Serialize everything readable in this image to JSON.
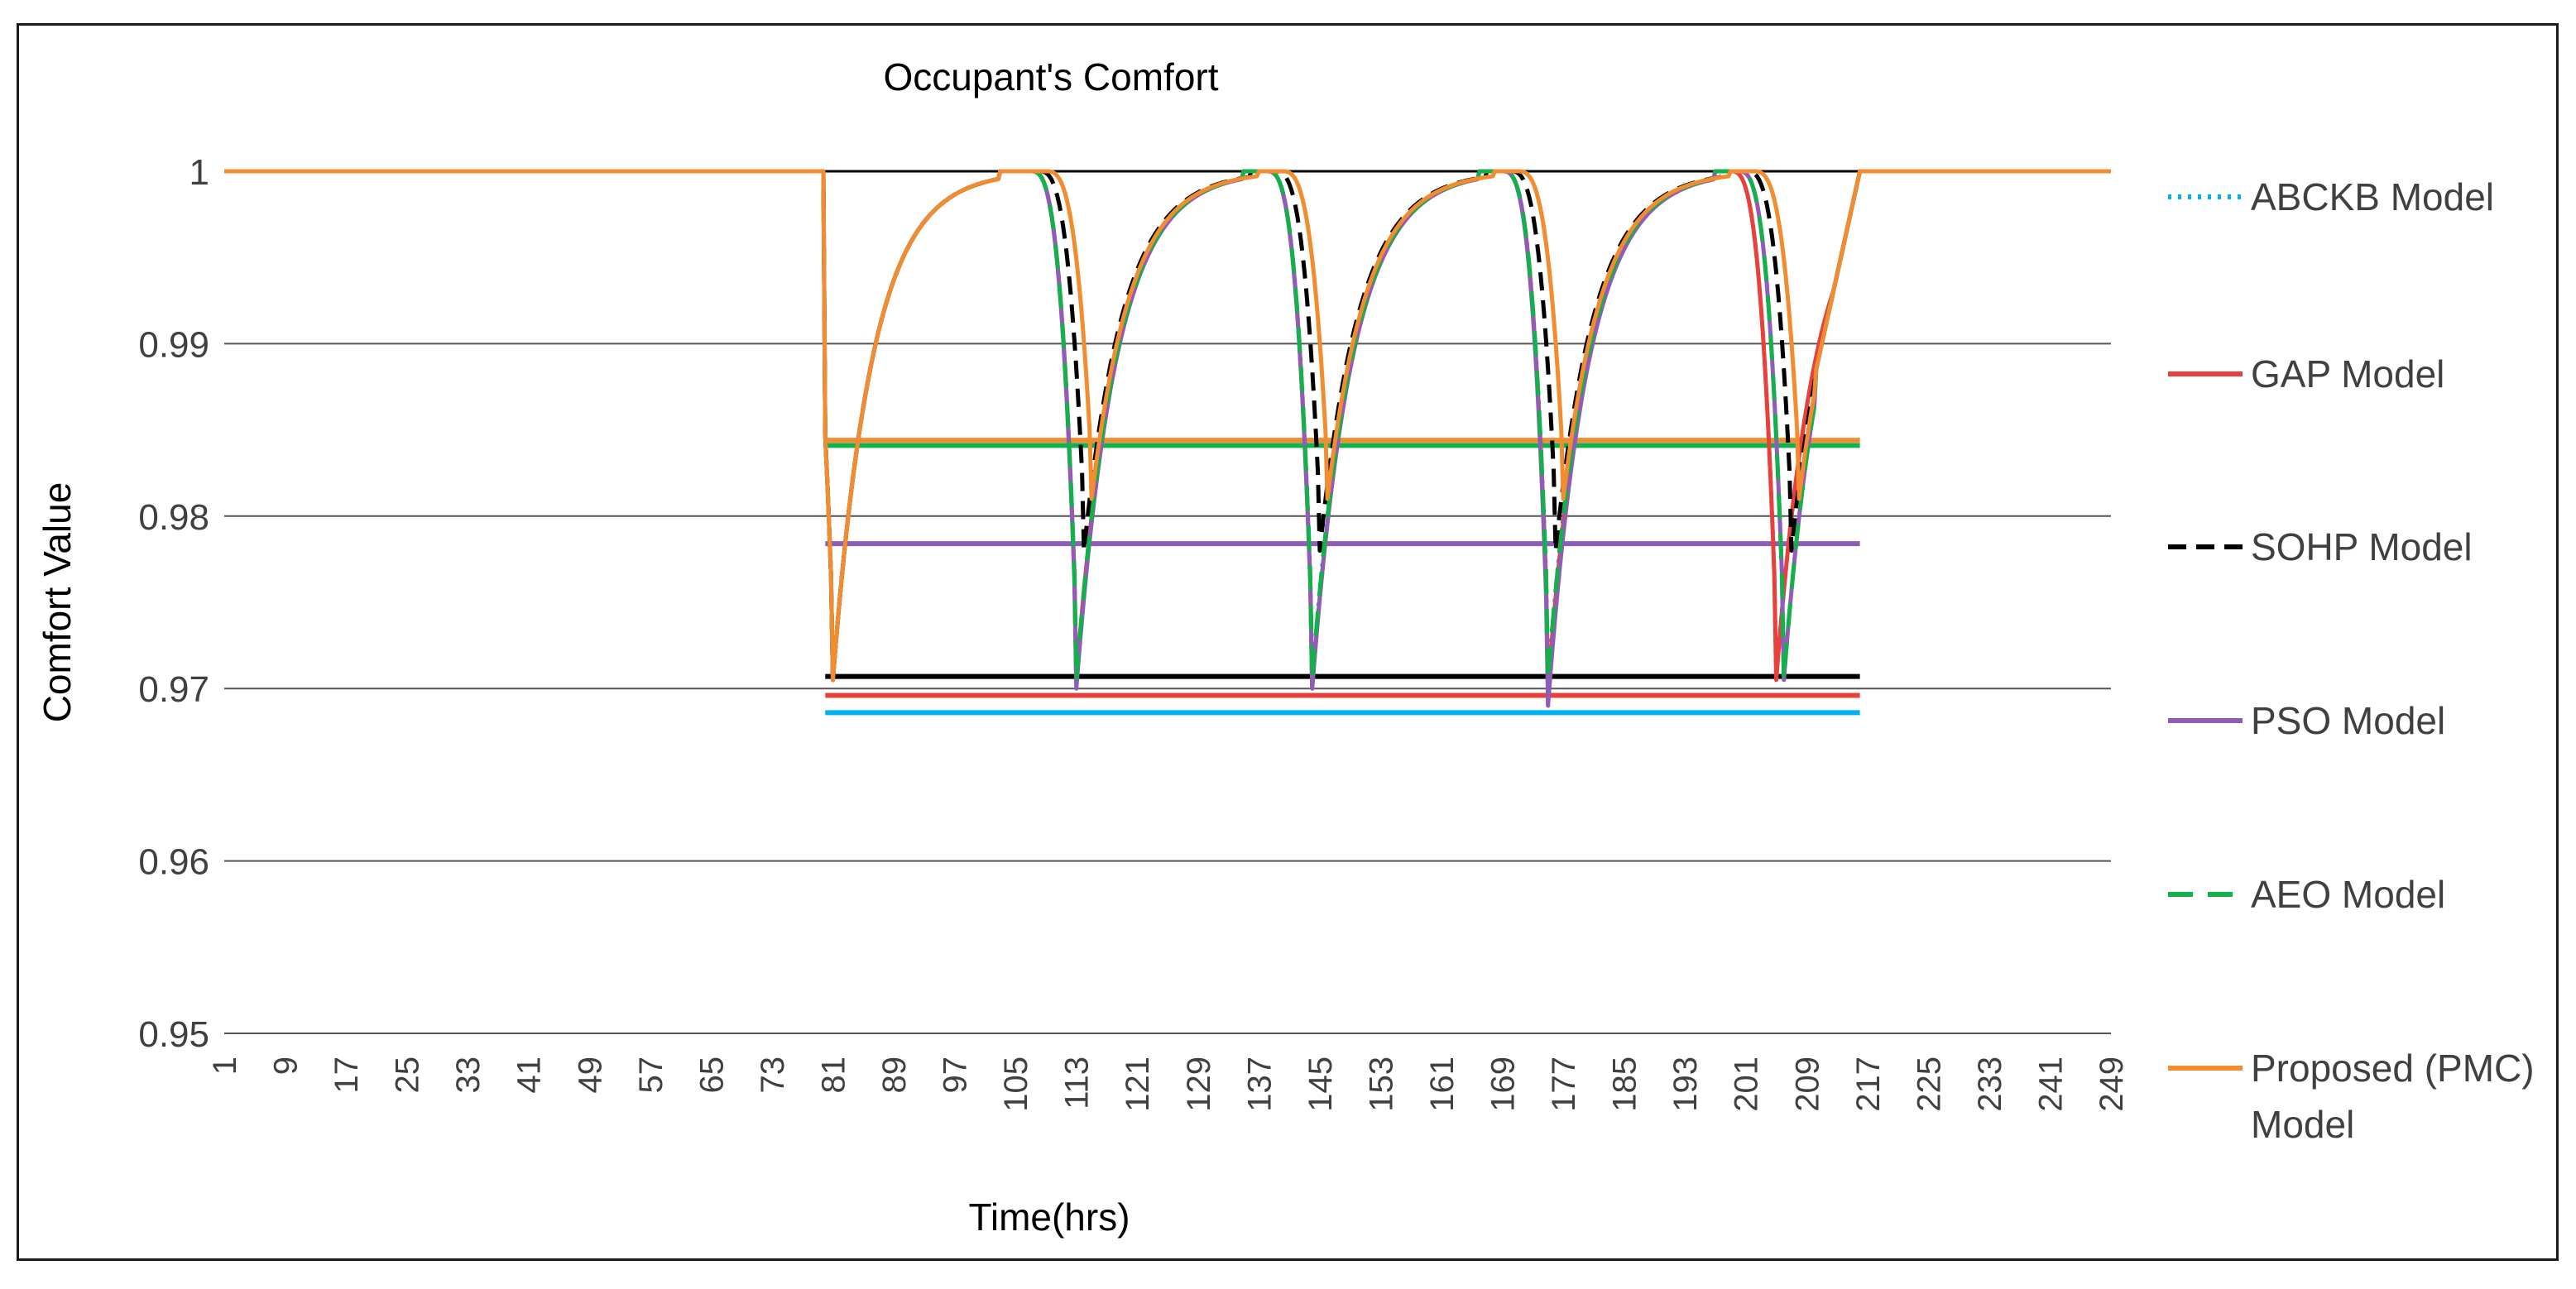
{
  "chart_data": {
    "type": "line",
    "title": "Occupant's Comfort",
    "xlabel": "Time(hrs)",
    "ylabel": "Comfort Value",
    "xlim": [
      1,
      249
    ],
    "ylim": [
      0.95,
      1.0
    ],
    "y_ticks": [
      "1",
      "0.99",
      "0.98",
      "0.97",
      "0.96",
      "0.95"
    ],
    "x_ticks": [
      "1",
      "9",
      "17",
      "25",
      "33",
      "41",
      "49",
      "57",
      "65",
      "73",
      "81",
      "89",
      "97",
      "105",
      "113",
      "121",
      "129",
      "137",
      "145",
      "153",
      "161",
      "169",
      "177",
      "185",
      "193",
      "201",
      "209",
      "217",
      "225",
      "233",
      "241",
      "249"
    ],
    "grid": true,
    "legend_position": "right",
    "series": [
      {
        "name": "ABCKB Model",
        "color": "#00b0f0",
        "dash": "dotted",
        "average": 0.9686,
        "dips": [
          {
            "at": 113,
            "min": 0.9705
          },
          {
            "at": 144,
            "min": 0.9705
          },
          {
            "at": 175,
            "min": 0.9705
          },
          {
            "at": 205,
            "min": 0.9705
          }
        ]
      },
      {
        "name": "GAP Model",
        "color": "#e8413c",
        "dash": "solid",
        "average": 0.9696,
        "dips": [
          {
            "at": 113,
            "min": 0.9705
          },
          {
            "at": 144,
            "min": 0.97
          },
          {
            "at": 175,
            "min": 0.97
          },
          {
            "at": 205,
            "min": 0.9705
          }
        ]
      },
      {
        "name": "SOHP Model",
        "color": "#000000",
        "dash": "dashed",
        "average": 0.9707,
        "dips": [
          {
            "at": 114,
            "min": 0.978
          },
          {
            "at": 145,
            "min": 0.978
          },
          {
            "at": 176,
            "min": 0.978
          },
          {
            "at": 207,
            "min": 0.978
          }
        ]
      },
      {
        "name": "PSO Model",
        "color": "#8e5db8",
        "dash": "solid",
        "average": 0.9784,
        "dips": [
          {
            "at": 113,
            "min": 0.97
          },
          {
            "at": 144,
            "min": 0.97
          },
          {
            "at": 175,
            "min": 0.969
          },
          {
            "at": 206,
            "min": 0.9705
          }
        ]
      },
      {
        "name": "AEO Model",
        "color": "#13b04b",
        "dash": "long-dashed",
        "average": 0.9841,
        "dips": [
          {
            "at": 113,
            "min": 0.9705
          },
          {
            "at": 144,
            "min": 0.9705
          },
          {
            "at": 175,
            "min": 0.9705
          },
          {
            "at": 206,
            "min": 0.9705
          }
        ]
      },
      {
        "name": "Proposed (PMC) Model",
        "color": "#f28c30",
        "dash": "solid",
        "average": 0.9844,
        "dips": [
          {
            "at": 115,
            "min": 0.981
          },
          {
            "at": 146,
            "min": 0.981
          },
          {
            "at": 177,
            "min": 0.981
          },
          {
            "at": 208,
            "min": 0.981
          }
        ]
      }
    ],
    "initial_dip": {
      "at": 81,
      "min": 0.9705
    },
    "active_range": [
      80,
      216
    ]
  }
}
